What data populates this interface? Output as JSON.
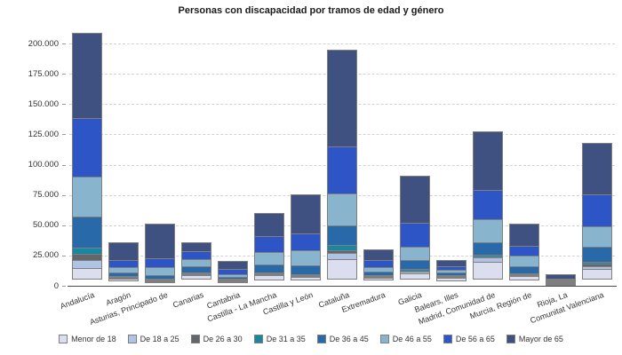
{
  "title": "Personas con discapacidad por tramos de edad y género",
  "chart_data": {
    "type": "bar",
    "stacked": true,
    "title": "Personas con discapacidad por tramos de edad y género",
    "xlabel": "",
    "ylabel": "",
    "ylim": [
      0,
      212000
    ],
    "grid": "horizontal-dashed",
    "legend_position": "bottom",
    "y_ticks": [
      {
        "value": 0,
        "label": "0"
      },
      {
        "value": 25000,
        "label": "25.000"
      },
      {
        "value": 50000,
        "label": "50.000"
      },
      {
        "value": 75000,
        "label": "75.000"
      },
      {
        "value": 100000,
        "label": "100.000"
      },
      {
        "value": 125000,
        "label": "125.000"
      },
      {
        "value": 150000,
        "label": "150.000"
      },
      {
        "value": 175000,
        "label": "175.000"
      },
      {
        "value": 200000,
        "label": "200.000"
      }
    ],
    "categories": [
      "Andalucía",
      "Aragón",
      "Asturias, Principado de",
      "Canarias",
      "Cantabria",
      "Castilla - La Mancha",
      "Castilla y León",
      "Cataluña",
      "Extremadura",
      "Galicia",
      "Balears, Illes",
      "Madrid, Comunidad de",
      "Murcia, Región de",
      "Rioja, La",
      "Comunitat Valenciana"
    ],
    "series": [
      {
        "name": "Menor de 18",
        "color": "#dbdeee",
        "values": [
          9700,
          2000,
          700,
          3900,
          1500,
          4200,
          2900,
          17100,
          1700,
          5600,
          2700,
          14700,
          3700,
          900,
          9000
        ]
      },
      {
        "name": "De 18 a 25",
        "color": "#afc3e5",
        "values": [
          7400,
          1000,
          700,
          1400,
          500,
          1400,
          1300,
          5400,
          1400,
          1900,
          1000,
          4200,
          1400,
          400,
          2700
        ]
      },
      {
        "name": "De 26 a 30",
        "color": "#63666b",
        "values": [
          5600,
          1000,
          500,
          1500,
          400,
          1000,
          900,
          3100,
          1100,
          1100,
          900,
          1500,
          1000,
          300,
          2700
        ]
      },
      {
        "name": "De 31 a 35",
        "color": "#1887a2",
        "values": [
          5900,
          1000,
          1000,
          1500,
          700,
          1500,
          1500,
          5200,
          1400,
          2100,
          1000,
          2200,
          1000,
          300,
          2700
        ]
      },
      {
        "name": "De 36 a 45",
        "color": "#2769a9",
        "values": [
          26300,
          3700,
          3700,
          5400,
          2000,
          7100,
          7800,
          16600,
          3700,
          8300,
          3000,
          11200,
          6800,
          900,
          12700
        ]
      },
      {
        "name": "De 46 a 55",
        "color": "#88b4cd",
        "values": [
          33700,
          5100,
          7500,
          6800,
          3000,
          11000,
          13700,
          27100,
          4600,
          11700,
          2900,
          20000,
          9300,
          900,
          17800
        ]
      },
      {
        "name": "De 56 a 65",
        "color": "#2e55c5",
        "values": [
          48900,
          7000,
          7900,
          7300,
          5300,
          14100,
          14200,
          39800,
          6400,
          20800,
          3700,
          24900,
          8800,
          1700,
          26900
        ]
      },
      {
        "name": "Mayor de 65",
        "color": "#3f5180",
        "values": [
          71300,
          14800,
          29200,
          8300,
          6900,
          20000,
          33400,
          80400,
          9700,
          39000,
          6000,
          48900,
          19500,
          3900,
          43200
        ]
      }
    ]
  },
  "colors": {
    "background": "#ffffff",
    "grid": "#d2d2d2",
    "axis": "#4d4d4d",
    "bar_border": "#7f7f7f",
    "text": "#333333"
  }
}
